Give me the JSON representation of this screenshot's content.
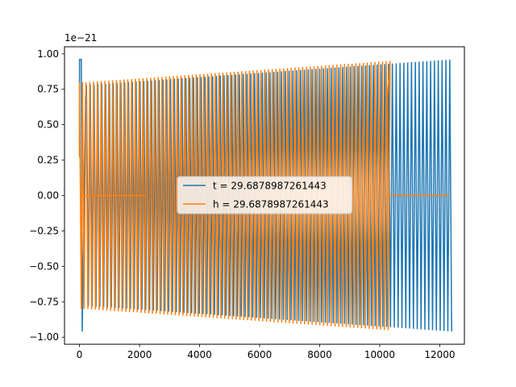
{
  "chart_data": {
    "type": "line",
    "title": "",
    "xlabel": "",
    "ylabel": "",
    "y_offset_text": "1e−21",
    "xlim": [
      -500,
      12820
    ],
    "ylim": [
      -1.05,
      1.05
    ],
    "x_ticks": [
      0,
      2000,
      4000,
      6000,
      8000,
      10000,
      12000
    ],
    "x_tick_labels": [
      "0",
      "2000",
      "4000",
      "6000",
      "8000",
      "10000",
      "12000"
    ],
    "y_ticks": [
      1.0,
      0.75,
      0.5,
      0.25,
      0.0,
      -0.25,
      -0.5,
      -0.75,
      -1.0
    ],
    "y_tick_labels": [
      "1.00",
      "0.75",
      "0.50",
      "0.25",
      "0.00",
      "−0.25",
      "−0.50",
      "−0.75",
      "−1.00"
    ],
    "grid": false,
    "legend_position": "center",
    "series": [
      {
        "name": "t = 29.6878987261443",
        "color": "#1f77b4",
        "x_start": 0,
        "x_end": 12300,
        "amplitude_start": 0.78,
        "amplitude_end": 0.96,
        "cycles": 95,
        "peak_ripple_interval": [
          0,
          200
        ],
        "peak_ripple_values": [
          0.96,
          -0.96,
          0.69
        ]
      },
      {
        "name": "h = 29.6878987261443",
        "color": "#ff7f0e",
        "x_start": 0,
        "x_end": 10250,
        "amplitude_start": 0.8,
        "amplitude_end": 0.95,
        "cycles": 80,
        "flat_zero_intervals": [
          [
            100,
            2200
          ],
          [
            10250,
            12300
          ]
        ],
        "end_value": 0.69
      }
    ]
  }
}
